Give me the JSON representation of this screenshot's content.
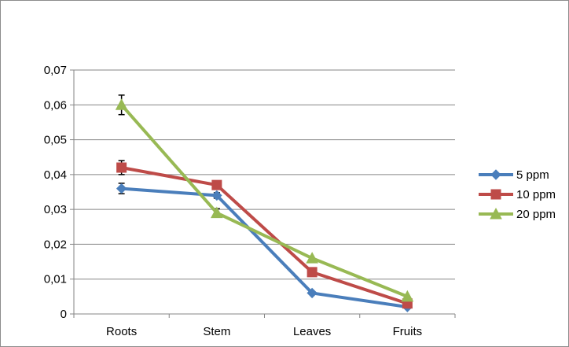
{
  "chart_data": {
    "type": "line",
    "categories": [
      "Roots",
      "Stem",
      "Leaves",
      "Fruits"
    ],
    "series": [
      {
        "name": "5 ppm",
        "values": [
          0.036,
          0.034,
          0.006,
          0.002
        ],
        "errors": [
          0.0015,
          0.0008,
          0.0,
          0.0
        ],
        "color": "#4a7ebb",
        "marker": "diamond"
      },
      {
        "name": "10 ppm",
        "values": [
          0.042,
          0.037,
          0.012,
          0.003
        ],
        "errors": [
          0.002,
          0.0008,
          0.0,
          0.0
        ],
        "color": "#be4b48",
        "marker": "square"
      },
      {
        "name": "20 ppm",
        "values": [
          0.06,
          0.029,
          0.016,
          0.005
        ],
        "errors": [
          0.0028,
          0.0012,
          0.0,
          0.0
        ],
        "color": "#98b954",
        "marker": "triangle"
      }
    ],
    "y_ticks": [
      "0",
      "0,01",
      "0,02",
      "0,03",
      "0,04",
      "0,05",
      "0,06",
      "0,07"
    ],
    "ylim": [
      0,
      0.07
    ],
    "grid": true,
    "legend": "right"
  }
}
